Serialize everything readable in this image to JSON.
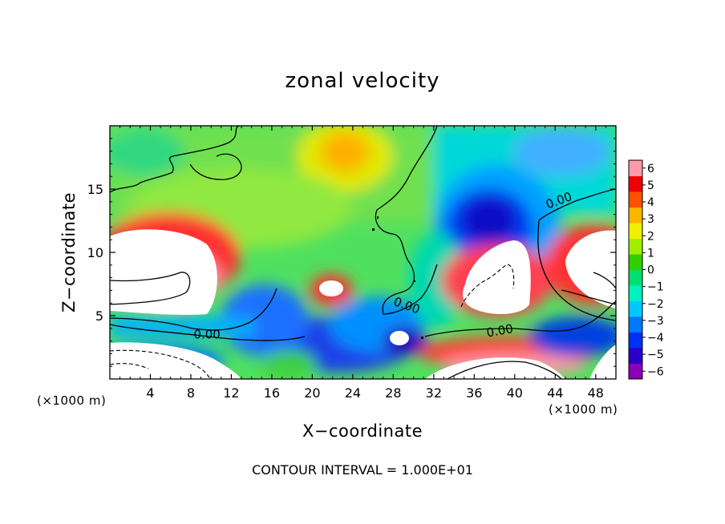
{
  "chart_data": {
    "type": "heatmap",
    "title": "zonal velocity",
    "xlabel": "X−coordinate",
    "ylabel": "Z−coordinate",
    "x_unit_label": "(×1000 m)",
    "footnote": "CONTOUR INTERVAL = 1.000E+01",
    "xlim": [
      0,
      50
    ],
    "ylim": [
      0,
      20
    ],
    "x_ticks": [
      4,
      8,
      12,
      16,
      20,
      24,
      28,
      32,
      36,
      40,
      44,
      48
    ],
    "y_ticks": [
      5,
      10,
      15
    ],
    "colorbar": {
      "range": [
        -6,
        6
      ],
      "ticks": [
        6,
        5,
        4,
        3,
        2,
        1,
        0,
        -1,
        -2,
        -3,
        -4,
        -5,
        -6
      ],
      "tick_labels": [
        "6",
        "5",
        "4",
        "3",
        "2",
        "1",
        "0",
        "−1",
        "−2",
        "−3",
        "−4",
        "−5",
        "−6"
      ],
      "colors": [
        "#8a00b8",
        "#2a00c8",
        "#0030f0",
        "#0078ff",
        "#00c8ff",
        "#00f0c0",
        "#00e070",
        "#30d000",
        "#a0ee00",
        "#f0f000",
        "#ffb400",
        "#ff5000",
        "#f00000",
        "#ff9aa8"
      ]
    },
    "contour_labels": [
      "0.00",
      "0.00",
      "0.00",
      "0.00"
    ],
    "features": [
      {
        "x": 5,
        "z": 9,
        "value": 6.5,
        "kind": "saturated-positive"
      },
      {
        "x": 22,
        "z": 7,
        "value": 4,
        "kind": "positive-core"
      },
      {
        "x": 38,
        "z": 12,
        "value": -5,
        "kind": "negative-core"
      },
      {
        "x": 38,
        "z": 8,
        "value": 6.5,
        "kind": "saturated-positive"
      },
      {
        "x": 47,
        "z": 8,
        "value": 6.5,
        "kind": "saturated-positive"
      },
      {
        "x": 25,
        "z": 17,
        "value": 3,
        "kind": "positive-core"
      }
    ]
  }
}
